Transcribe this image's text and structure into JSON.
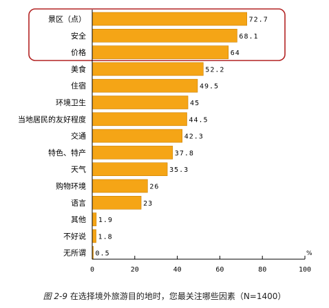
{
  "chart_data": {
    "type": "bar",
    "orientation": "horizontal",
    "title": "",
    "xlabel": "",
    "ylabel": "",
    "unit_label": "%",
    "xlim": [
      0,
      100
    ],
    "ticks": [
      "0",
      "20",
      "40",
      "60",
      "80",
      "100"
    ],
    "categories": [
      "景区（点）",
      "安全",
      "价格",
      "美食",
      "住宿",
      "环境卫生",
      "当地居民的友好程度",
      "交通",
      "特色、特产",
      "天气",
      "购物环境",
      "语言",
      "其他",
      "不好说",
      "无所谓"
    ],
    "values": [
      72.7,
      68.1,
      64,
      52.2,
      49.5,
      45,
      44.5,
      42.3,
      37.8,
      35.3,
      26,
      23,
      1.9,
      1.8,
      0.5
    ],
    "value_labels": [
      "72.7",
      "68.1",
      "64",
      "52.2",
      "49.5",
      "45",
      "44.5",
      "42.3",
      "37.8",
      "35.3",
      "26",
      "23",
      "1.9",
      "1.8",
      "0.5"
    ],
    "highlighted_categories": [
      "景区（点）",
      "安全",
      "价格"
    ],
    "grid": false,
    "colors": {
      "bar": "#F5A516",
      "bar_edge": "#C97E00",
      "highlight_box": "#B22222",
      "axis": "#000000"
    }
  },
  "caption": {
    "figure_no": "图 2-9",
    "text": "在选择境外旅游目的地时，您最关注哪些因素（N=1400）"
  }
}
